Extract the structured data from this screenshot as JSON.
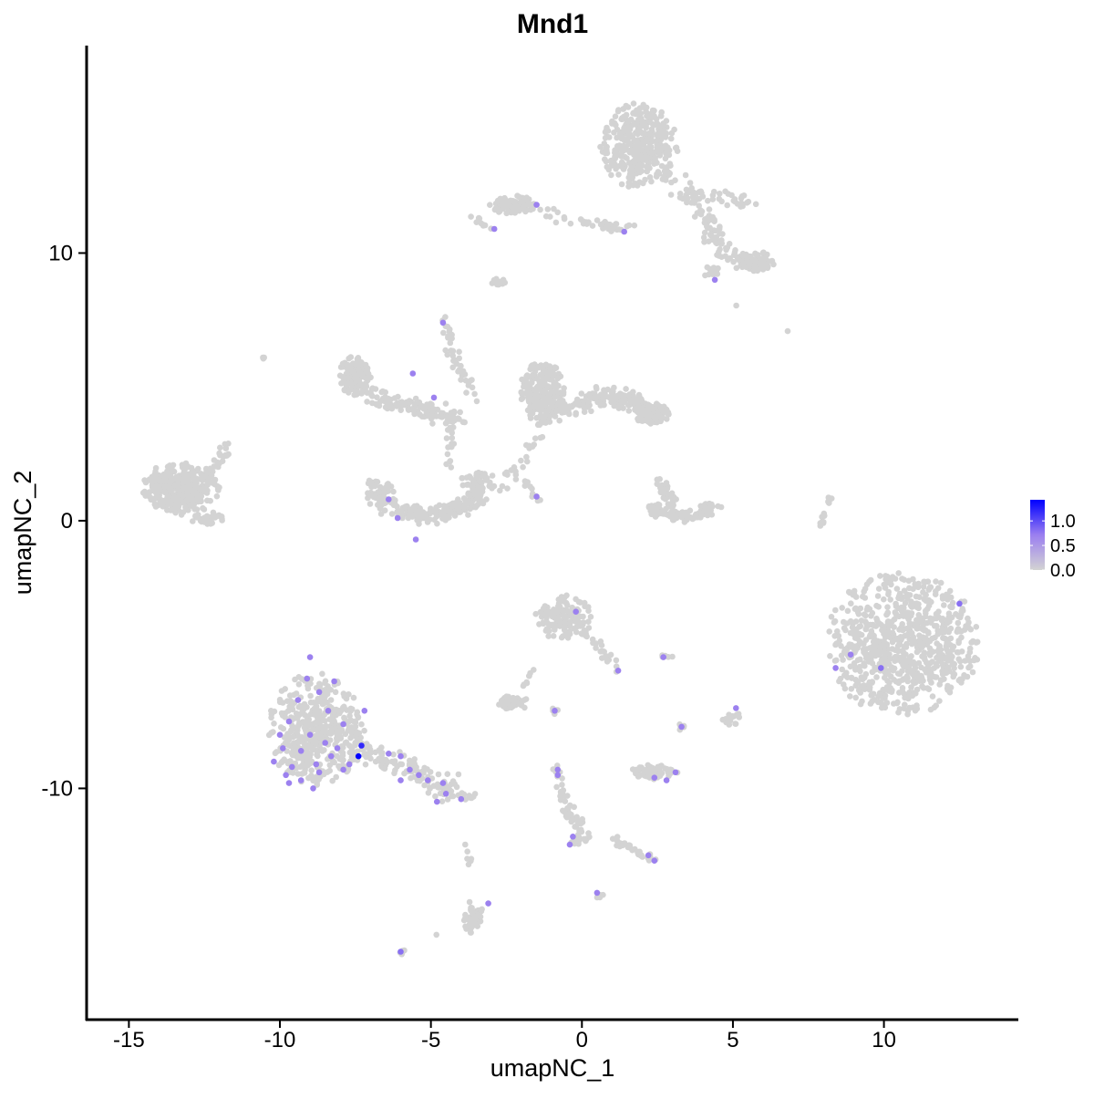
{
  "chart_data": {
    "type": "scatter",
    "title": "Mnd1",
    "xlabel": "umapNC_1",
    "ylabel": "umapNC_2",
    "xlim": [
      -16.4,
      14.45
    ],
    "ylim": [
      -18.64,
      17.75
    ],
    "xticks": [
      -15,
      -10,
      -5,
      0,
      5,
      10
    ],
    "yticks": [
      -10,
      0,
      10
    ],
    "grid": false,
    "colors": {
      "low": "#d3d3d3",
      "mid": "#9b7ff0",
      "high": "#0000ff"
    },
    "legend": {
      "placement": "right",
      "type": "colorbar",
      "range": [
        0,
        1.43
      ],
      "ticks": [
        1.0,
        0.5,
        0.0
      ],
      "tick_labels": [
        "1.0",
        "0.5",
        "0.0"
      ]
    },
    "clusters": [
      {
        "shape": "ellipse",
        "c": [
          1.9,
          14.0
        ],
        "r": [
          1.3,
          1.6
        ],
        "n": 380
      },
      {
        "shape": "path",
        "pts": [
          [
            2.8,
            13.0
          ],
          [
            3.8,
            11.8
          ],
          [
            4.4,
            10.6
          ],
          [
            5.0,
            9.8
          ]
        ],
        "w": 0.45,
        "n": 90
      },
      {
        "shape": "path",
        "pts": [
          [
            3.4,
            12.2
          ],
          [
            4.8,
            12.1
          ],
          [
            5.6,
            11.9
          ]
        ],
        "w": 0.35,
        "n": 35
      },
      {
        "shape": "ellipse",
        "c": [
          5.7,
          9.7
        ],
        "r": [
          0.7,
          0.4
        ],
        "n": 90
      },
      {
        "shape": "ellipse",
        "c": [
          4.3,
          9.3
        ],
        "r": [
          0.3,
          0.2
        ],
        "n": 15
      },
      {
        "shape": "ellipse",
        "c": [
          -2.3,
          11.8
        ],
        "r": [
          0.8,
          0.35
        ],
        "n": 90
      },
      {
        "shape": "path",
        "pts": [
          [
            -1.5,
            11.5
          ],
          [
            0.5,
            11.1
          ],
          [
            1.6,
            10.9
          ]
        ],
        "w": 0.25,
        "n": 40
      },
      {
        "shape": "path",
        "pts": [
          [
            -3.6,
            11.3
          ],
          [
            -2.9,
            10.9
          ]
        ],
        "w": 0.2,
        "n": 10
      },
      {
        "shape": "ellipse",
        "c": [
          -2.7,
          8.9
        ],
        "r": [
          0.3,
          0.15
        ],
        "n": 14
      },
      {
        "shape": "ellipse",
        "c": [
          -13.3,
          1.2
        ],
        "r": [
          1.3,
          1.0
        ],
        "n": 330
      },
      {
        "shape": "path",
        "pts": [
          [
            -12.3,
            1.8
          ],
          [
            -11.7,
            2.8
          ]
        ],
        "w": 0.3,
        "n": 25
      },
      {
        "shape": "ellipse",
        "c": [
          -12.4,
          0.1
        ],
        "r": [
          0.6,
          0.25
        ],
        "n": 35
      },
      {
        "shape": "ellipse",
        "c": [
          -7.5,
          5.4
        ],
        "r": [
          0.55,
          0.8
        ],
        "n": 130
      },
      {
        "shape": "path",
        "pts": [
          [
            -7.0,
            4.7
          ],
          [
            -5.5,
            4.2
          ],
          [
            -4.0,
            3.8
          ]
        ],
        "w": 0.4,
        "n": 130
      },
      {
        "shape": "path",
        "pts": [
          [
            -4.6,
            7.6
          ],
          [
            -4.2,
            5.8
          ],
          [
            -3.4,
            4.6
          ]
        ],
        "w": 0.25,
        "n": 45
      },
      {
        "shape": "path",
        "pts": [
          [
            -4.3,
            3.4
          ],
          [
            -4.4,
            2.0
          ]
        ],
        "w": 0.2,
        "n": 15
      },
      {
        "shape": "arc",
        "c": [
          -5.1,
          1.3
        ],
        "radius": 1.7,
        "a": [
          170,
          385
        ],
        "w": 0.55,
        "n": 280
      },
      {
        "shape": "ellipse",
        "c": [
          -1.3,
          4.8
        ],
        "r": [
          0.75,
          1.25
        ],
        "n": 220
      },
      {
        "shape": "path",
        "pts": [
          [
            -1.0,
            4.1
          ],
          [
            0.6,
            4.6
          ],
          [
            1.6,
            4.5
          ],
          [
            2.7,
            3.8
          ]
        ],
        "w": 0.45,
        "n": 200
      },
      {
        "shape": "ellipse",
        "c": [
          2.3,
          4.0
        ],
        "r": [
          0.6,
          0.4
        ],
        "n": 110
      },
      {
        "shape": "path",
        "pts": [
          [
            -1.4,
            3.2
          ],
          [
            -2.3,
            1.7
          ]
        ],
        "w": 0.25,
        "n": 20
      },
      {
        "shape": "path",
        "pts": [
          [
            -2.5,
            2.0
          ],
          [
            -2.6,
            1.0
          ]
        ],
        "w": 0.15,
        "n": 6
      },
      {
        "shape": "path",
        "pts": [
          [
            -2.0,
            1.6
          ],
          [
            -1.3,
            0.6
          ]
        ],
        "w": 0.15,
        "n": 10
      },
      {
        "shape": "arc",
        "c": [
          3.3,
          0.8
        ],
        "radius": 1.05,
        "a": [
          200,
          345
        ],
        "w": 0.35,
        "n": 110
      },
      {
        "shape": "path",
        "pts": [
          [
            2.6,
            1.4
          ],
          [
            3.2,
            0.2
          ]
        ],
        "w": 0.25,
        "n": 40
      },
      {
        "shape": "ellipse",
        "c": [
          10.6,
          -4.6
        ],
        "r": [
          2.55,
          2.7
        ],
        "n": 760
      },
      {
        "shape": "path",
        "pts": [
          [
            7.9,
            -0.3
          ],
          [
            8.2,
            0.9
          ]
        ],
        "w": 0.12,
        "n": 16
      },
      {
        "shape": "ellipse",
        "c": [
          -8.8,
          -7.8
        ],
        "r": [
          1.6,
          2.1
        ],
        "n": 480
      },
      {
        "shape": "path",
        "pts": [
          [
            -7.5,
            -8.5
          ],
          [
            -5.5,
            -9.3
          ],
          [
            -4.0,
            -10.3
          ]
        ],
        "w": 0.5,
        "n": 130
      },
      {
        "shape": "path",
        "pts": [
          [
            -3.8,
            -10.3
          ],
          [
            -3.4,
            -10.4
          ]
        ],
        "w": 0.2,
        "n": 6
      },
      {
        "shape": "ellipse",
        "c": [
          -0.6,
          -3.6
        ],
        "r": [
          0.95,
          0.85
        ],
        "n": 130
      },
      {
        "shape": "path",
        "pts": [
          [
            0.0,
            -4.0
          ],
          [
            1.2,
            -5.6
          ]
        ],
        "w": 0.2,
        "n": 25
      },
      {
        "shape": "ellipse",
        "c": [
          -2.3,
          -6.8
        ],
        "r": [
          0.6,
          0.25
        ],
        "n": 45
      },
      {
        "shape": "path",
        "pts": [
          [
            -2.0,
            -6.5
          ],
          [
            -1.6,
            -5.4
          ]
        ],
        "w": 0.12,
        "n": 8
      },
      {
        "shape": "ellipse",
        "c": [
          2.4,
          -9.4
        ],
        "r": [
          0.8,
          0.3
        ],
        "n": 65
      },
      {
        "shape": "path",
        "pts": [
          [
            -0.9,
            -9.0
          ],
          [
            -0.5,
            -10.8
          ],
          [
            0.1,
            -11.7
          ],
          [
            -0.3,
            -12.1
          ]
        ],
        "w": 0.25,
        "n": 65
      },
      {
        "shape": "path",
        "pts": [
          [
            1.0,
            -11.9
          ],
          [
            2.4,
            -12.7
          ]
        ],
        "w": 0.2,
        "n": 30
      },
      {
        "shape": "ellipse",
        "c": [
          -3.6,
          -14.8
        ],
        "r": [
          0.35,
          0.7
        ],
        "n": 55
      },
      {
        "shape": "path",
        "pts": [
          [
            -3.8,
            -12.0
          ],
          [
            -3.7,
            -13.2
          ]
        ],
        "w": 0.1,
        "n": 6
      },
      {
        "shape": "ellipse",
        "c": [
          5.0,
          -7.4
        ],
        "r": [
          0.35,
          0.25
        ],
        "n": 18
      },
      {
        "shape": "ellipse",
        "c": [
          3.3,
          -7.7
        ],
        "r": [
          0.15,
          0.15
        ],
        "n": 6
      },
      {
        "shape": "ellipse",
        "c": [
          2.8,
          -5.1
        ],
        "r": [
          0.2,
          0.1
        ],
        "n": 5
      },
      {
        "shape": "ellipse",
        "c": [
          -0.9,
          -7.1
        ],
        "r": [
          0.15,
          0.15
        ],
        "n": 5
      },
      {
        "shape": "ellipse",
        "c": [
          0.6,
          -14.0
        ],
        "r": [
          0.15,
          0.1
        ],
        "n": 5
      },
      {
        "shape": "ellipse",
        "c": [
          -6.0,
          -16.1
        ],
        "r": [
          0.15,
          0.1
        ],
        "n": 5
      },
      {
        "shape": "ellipse",
        "c": [
          -10.5,
          6.1
        ],
        "r": [
          0.1,
          0.1
        ],
        "n": 3
      },
      {
        "shape": "ellipse",
        "c": [
          6.8,
          7.1
        ],
        "r": [
          0.05,
          0.05
        ],
        "n": 1
      },
      {
        "shape": "ellipse",
        "c": [
          5.1,
          8.0
        ],
        "r": [
          0.05,
          0.05
        ],
        "n": 1
      },
      {
        "shape": "ellipse",
        "c": [
          -4.8,
          -15.5
        ],
        "r": [
          0.05,
          0.05
        ],
        "n": 1
      }
    ],
    "expressed_points": [
      {
        "x": -1.5,
        "y": 11.8,
        "v": 0.7
      },
      {
        "x": -2.9,
        "y": 10.9,
        "v": 0.7
      },
      {
        "x": 1.4,
        "y": 10.8,
        "v": 0.7
      },
      {
        "x": 4.4,
        "y": 9.0,
        "v": 0.7
      },
      {
        "x": -4.6,
        "y": 7.4,
        "v": 0.7
      },
      {
        "x": -5.6,
        "y": 5.5,
        "v": 0.7
      },
      {
        "x": -4.9,
        "y": 4.6,
        "v": 0.7
      },
      {
        "x": -6.4,
        "y": 0.8,
        "v": 0.7
      },
      {
        "x": -6.1,
        "y": 0.1,
        "v": 0.7
      },
      {
        "x": -5.5,
        "y": -0.7,
        "v": 0.7
      },
      {
        "x": -1.5,
        "y": 0.9,
        "v": 0.7
      },
      {
        "x": -0.2,
        "y": -3.4,
        "v": 0.7
      },
      {
        "x": 1.2,
        "y": -5.6,
        "v": 0.7
      },
      {
        "x": 2.7,
        "y": -5.1,
        "v": 0.7
      },
      {
        "x": 8.4,
        "y": -5.5,
        "v": 0.7
      },
      {
        "x": 8.9,
        "y": -5.0,
        "v": 0.7
      },
      {
        "x": 9.9,
        "y": -5.5,
        "v": 0.8
      },
      {
        "x": 12.5,
        "y": -3.1,
        "v": 0.8
      },
      {
        "x": -0.9,
        "y": -7.1,
        "v": 0.7
      },
      {
        "x": 5.1,
        "y": -7.0,
        "v": 0.7
      },
      {
        "x": 3.3,
        "y": -7.7,
        "v": 0.7
      },
      {
        "x": -0.8,
        "y": -9.3,
        "v": 0.7
      },
      {
        "x": -0.8,
        "y": -9.5,
        "v": 0.7
      },
      {
        "x": 2.4,
        "y": -9.6,
        "v": 0.7
      },
      {
        "x": 2.8,
        "y": -9.7,
        "v": 0.7
      },
      {
        "x": 3.1,
        "y": -9.4,
        "v": 0.7
      },
      {
        "x": -0.3,
        "y": -11.8,
        "v": 0.7
      },
      {
        "x": -0.4,
        "y": -12.1,
        "v": 0.7
      },
      {
        "x": 2.2,
        "y": -12.5,
        "v": 0.7
      },
      {
        "x": 2.4,
        "y": -12.7,
        "v": 0.7
      },
      {
        "x": -3.1,
        "y": -14.3,
        "v": 0.7
      },
      {
        "x": 0.5,
        "y": -13.9,
        "v": 0.7
      },
      {
        "x": -6.0,
        "y": -16.1,
        "v": 0.8
      },
      {
        "x": -9.0,
        "y": -5.1,
        "v": 0.7
      },
      {
        "x": -9.1,
        "y": -5.9,
        "v": 0.7
      },
      {
        "x": -8.7,
        "y": -6.4,
        "v": 0.7
      },
      {
        "x": -8.4,
        "y": -7.1,
        "v": 0.7
      },
      {
        "x": -9.7,
        "y": -7.5,
        "v": 0.7
      },
      {
        "x": -7.9,
        "y": -7.6,
        "v": 0.7
      },
      {
        "x": -9.0,
        "y": -8.0,
        "v": 0.7
      },
      {
        "x": -9.9,
        "y": -8.5,
        "v": 0.7
      },
      {
        "x": -9.3,
        "y": -8.6,
        "v": 0.7
      },
      {
        "x": -8.5,
        "y": -8.3,
        "v": 0.7
      },
      {
        "x": -8.1,
        "y": -8.5,
        "v": 0.7
      },
      {
        "x": -7.3,
        "y": -8.4,
        "v": 1.2
      },
      {
        "x": -7.4,
        "y": -8.8,
        "v": 1.43
      },
      {
        "x": -10.2,
        "y": -9.0,
        "v": 0.7
      },
      {
        "x": -9.6,
        "y": -9.2,
        "v": 0.7
      },
      {
        "x": -8.8,
        "y": -9.1,
        "v": 0.7
      },
      {
        "x": -8.3,
        "y": -8.8,
        "v": 0.7
      },
      {
        "x": -7.7,
        "y": -9.1,
        "v": 0.7
      },
      {
        "x": -9.8,
        "y": -9.5,
        "v": 0.7
      },
      {
        "x": -9.3,
        "y": -9.7,
        "v": 0.7
      },
      {
        "x": -8.7,
        "y": -9.4,
        "v": 0.7
      },
      {
        "x": -7.9,
        "y": -9.3,
        "v": 0.7
      },
      {
        "x": -9.7,
        "y": -9.8,
        "v": 0.7
      },
      {
        "x": -7.2,
        "y": -7.1,
        "v": 0.7
      },
      {
        "x": -6.4,
        "y": -8.7,
        "v": 0.7
      },
      {
        "x": -6.0,
        "y": -8.8,
        "v": 0.7
      },
      {
        "x": -5.7,
        "y": -9.3,
        "v": 0.7
      },
      {
        "x": -5.4,
        "y": -9.5,
        "v": 0.7
      },
      {
        "x": -5.1,
        "y": -9.7,
        "v": 0.7
      },
      {
        "x": -4.6,
        "y": -9.8,
        "v": 0.7
      },
      {
        "x": -4.5,
        "y": -10.2,
        "v": 0.7
      },
      {
        "x": -4.0,
        "y": -10.4,
        "v": 0.7
      },
      {
        "x": -6.0,
        "y": -9.7,
        "v": 0.7
      },
      {
        "x": -4.8,
        "y": -10.5,
        "v": 0.7
      },
      {
        "x": -9.4,
        "y": -6.7,
        "v": 0.7
      },
      {
        "x": -8.2,
        "y": -6.0,
        "v": 0.7
      },
      {
        "x": -10.0,
        "y": -8.0,
        "v": 0.7
      },
      {
        "x": -8.9,
        "y": -10.0,
        "v": 0.7
      }
    ]
  }
}
